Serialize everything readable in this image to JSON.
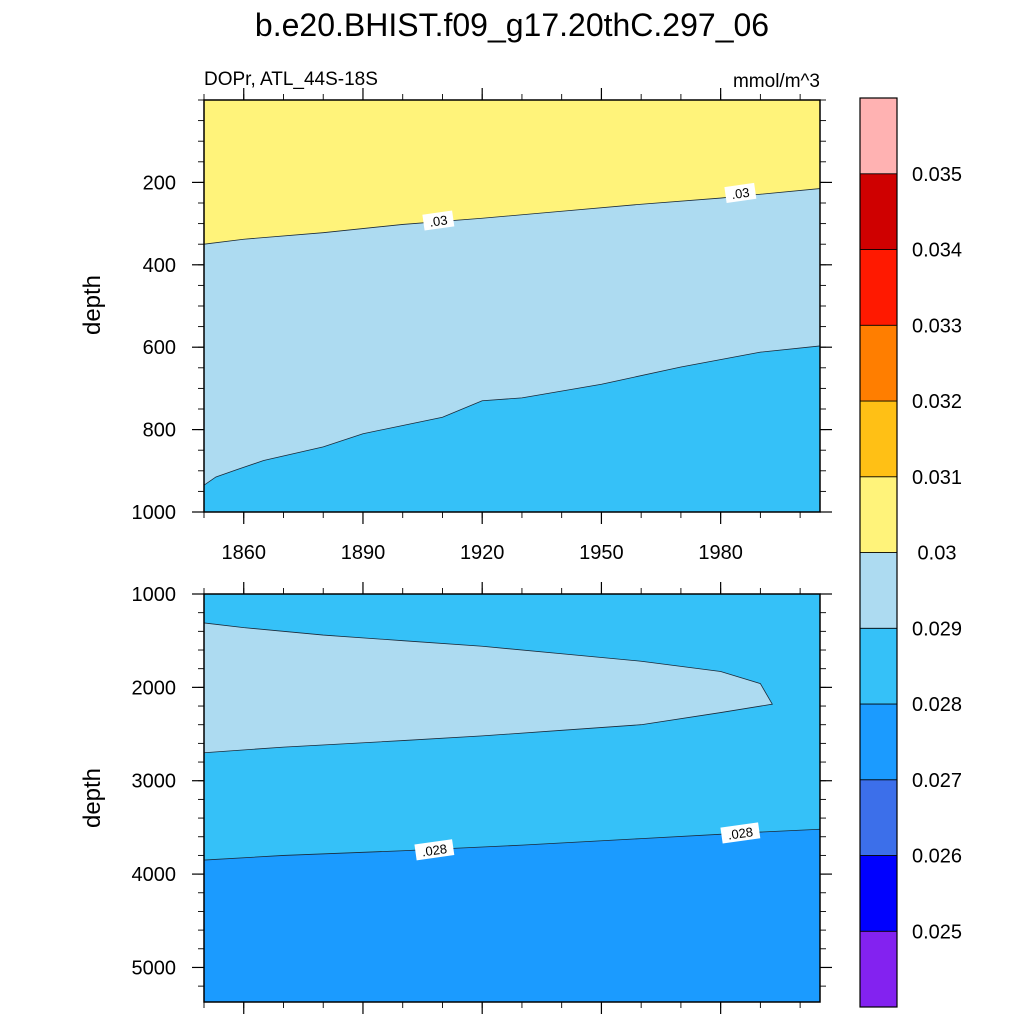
{
  "chart_data": [
    {
      "type": "contour",
      "title": "b.e20.BHIST.f09_g17.20thC.297_06",
      "subtitle_left": "DOPr, ATL_44S-18S",
      "subtitle_right": "mmol/m^3",
      "xlabel": "",
      "ylabel": "depth",
      "xlim": [
        1850,
        2005
      ],
      "ylim": [
        0,
        1000
      ],
      "y_inverted": true,
      "xticks": [
        1860,
        1890,
        1920,
        1950,
        1980
      ],
      "xtick_labels": [
        "1860",
        "1890",
        "1920",
        "1950",
        "1980"
      ],
      "yticks": [
        200,
        400,
        600,
        800,
        1000
      ],
      "ytick_labels": [
        "200",
        "400",
        "600",
        "800",
        "1000"
      ],
      "contour_labels": [
        {
          "text": ".03",
          "x": 1909,
          "y": 295
        },
        {
          "text": ".03",
          "x": 1985,
          "y": 228
        }
      ],
      "bands": [
        {
          "range": "0.03-0.031",
          "color": "#fff37a",
          "lower_boundary": [
            [
              1850,
              0
            ],
            [
              2005,
              0
            ]
          ]
        },
        {
          "range": "0.029-0.03",
          "color": "#addbf1",
          "lower_boundary": [
            [
              1850,
              350
            ],
            [
              1860,
              338
            ],
            [
              1880,
              322
            ],
            [
              1900,
              302
            ],
            [
              1920,
              287
            ],
            [
              1940,
              270
            ],
            [
              1960,
              253
            ],
            [
              1980,
              238
            ],
            [
              2005,
              215
            ]
          ]
        },
        {
          "range": "0.028-0.029",
          "color": "#35c1f8",
          "lower_boundary": [
            [
              1850,
              935
            ],
            [
              1853,
              915
            ],
            [
              1858,
              898
            ],
            [
              1865,
              875
            ],
            [
              1880,
              842
            ],
            [
              1890,
              810
            ],
            [
              1910,
              770
            ],
            [
              1920,
              730
            ],
            [
              1930,
              723
            ],
            [
              1950,
              690
            ],
            [
              1970,
              648
            ],
            [
              1990,
              612
            ],
            [
              2005,
              597
            ]
          ]
        }
      ]
    },
    {
      "type": "contour",
      "xlim": [
        1850,
        2005
      ],
      "ylim": [
        1000,
        5370
      ],
      "y_inverted": true,
      "ylabel": "depth",
      "yticks": [
        1000,
        2000,
        3000,
        4000,
        5000
      ],
      "ytick_labels": [
        "1000",
        "2000",
        "3000",
        "4000",
        "5000"
      ],
      "contour_labels": [
        {
          "text": ".028",
          "x": 1908,
          "y": 3750
        },
        {
          "text": ".028",
          "x": 1985,
          "y": 3570
        }
      ],
      "bands": [
        {
          "range": "0.028-0.029",
          "color": "#35c1f8",
          "region": "background"
        },
        {
          "range": "0.029-0.03",
          "color": "#addbf1",
          "region": [
            [
              1850,
              1310
            ],
            [
              1860,
              1360
            ],
            [
              1880,
              1440
            ],
            [
              1900,
              1500
            ],
            [
              1920,
              1560
            ],
            [
              1940,
              1640
            ],
            [
              1960,
              1720
            ],
            [
              1980,
              1830
            ],
            [
              1990,
              1960
            ],
            [
              1993,
              2180
            ],
            [
              1980,
              2270
            ],
            [
              1960,
              2400
            ],
            [
              1940,
              2460
            ],
            [
              1920,
              2520
            ],
            [
              1900,
              2570
            ],
            [
              1870,
              2640
            ],
            [
              1850,
              2700
            ]
          ]
        },
        {
          "range": "0.027-0.028",
          "color": "#1b9bff",
          "upper_boundary": [
            [
              1850,
              3850
            ],
            [
              1870,
              3800
            ],
            [
              1900,
              3750
            ],
            [
              1930,
              3690
            ],
            [
              1960,
              3620
            ],
            [
              1990,
              3550
            ],
            [
              2005,
              3520
            ]
          ]
        }
      ]
    }
  ],
  "colorbar": {
    "levels": [
      "0.025",
      "0.026",
      "0.027",
      "0.028",
      "0.029",
      "0.03",
      "0.031",
      "0.032",
      "0.033",
      "0.034",
      "0.035"
    ],
    "colors": [
      "#8322f0",
      "#0000ff",
      "#3c6fea",
      "#1b9bff",
      "#35c1f8",
      "#addbf1",
      "#fff37a",
      "#ffc015",
      "#ff7e00",
      "#ff1900",
      "#cf0000",
      "#ffb2b2"
    ]
  }
}
